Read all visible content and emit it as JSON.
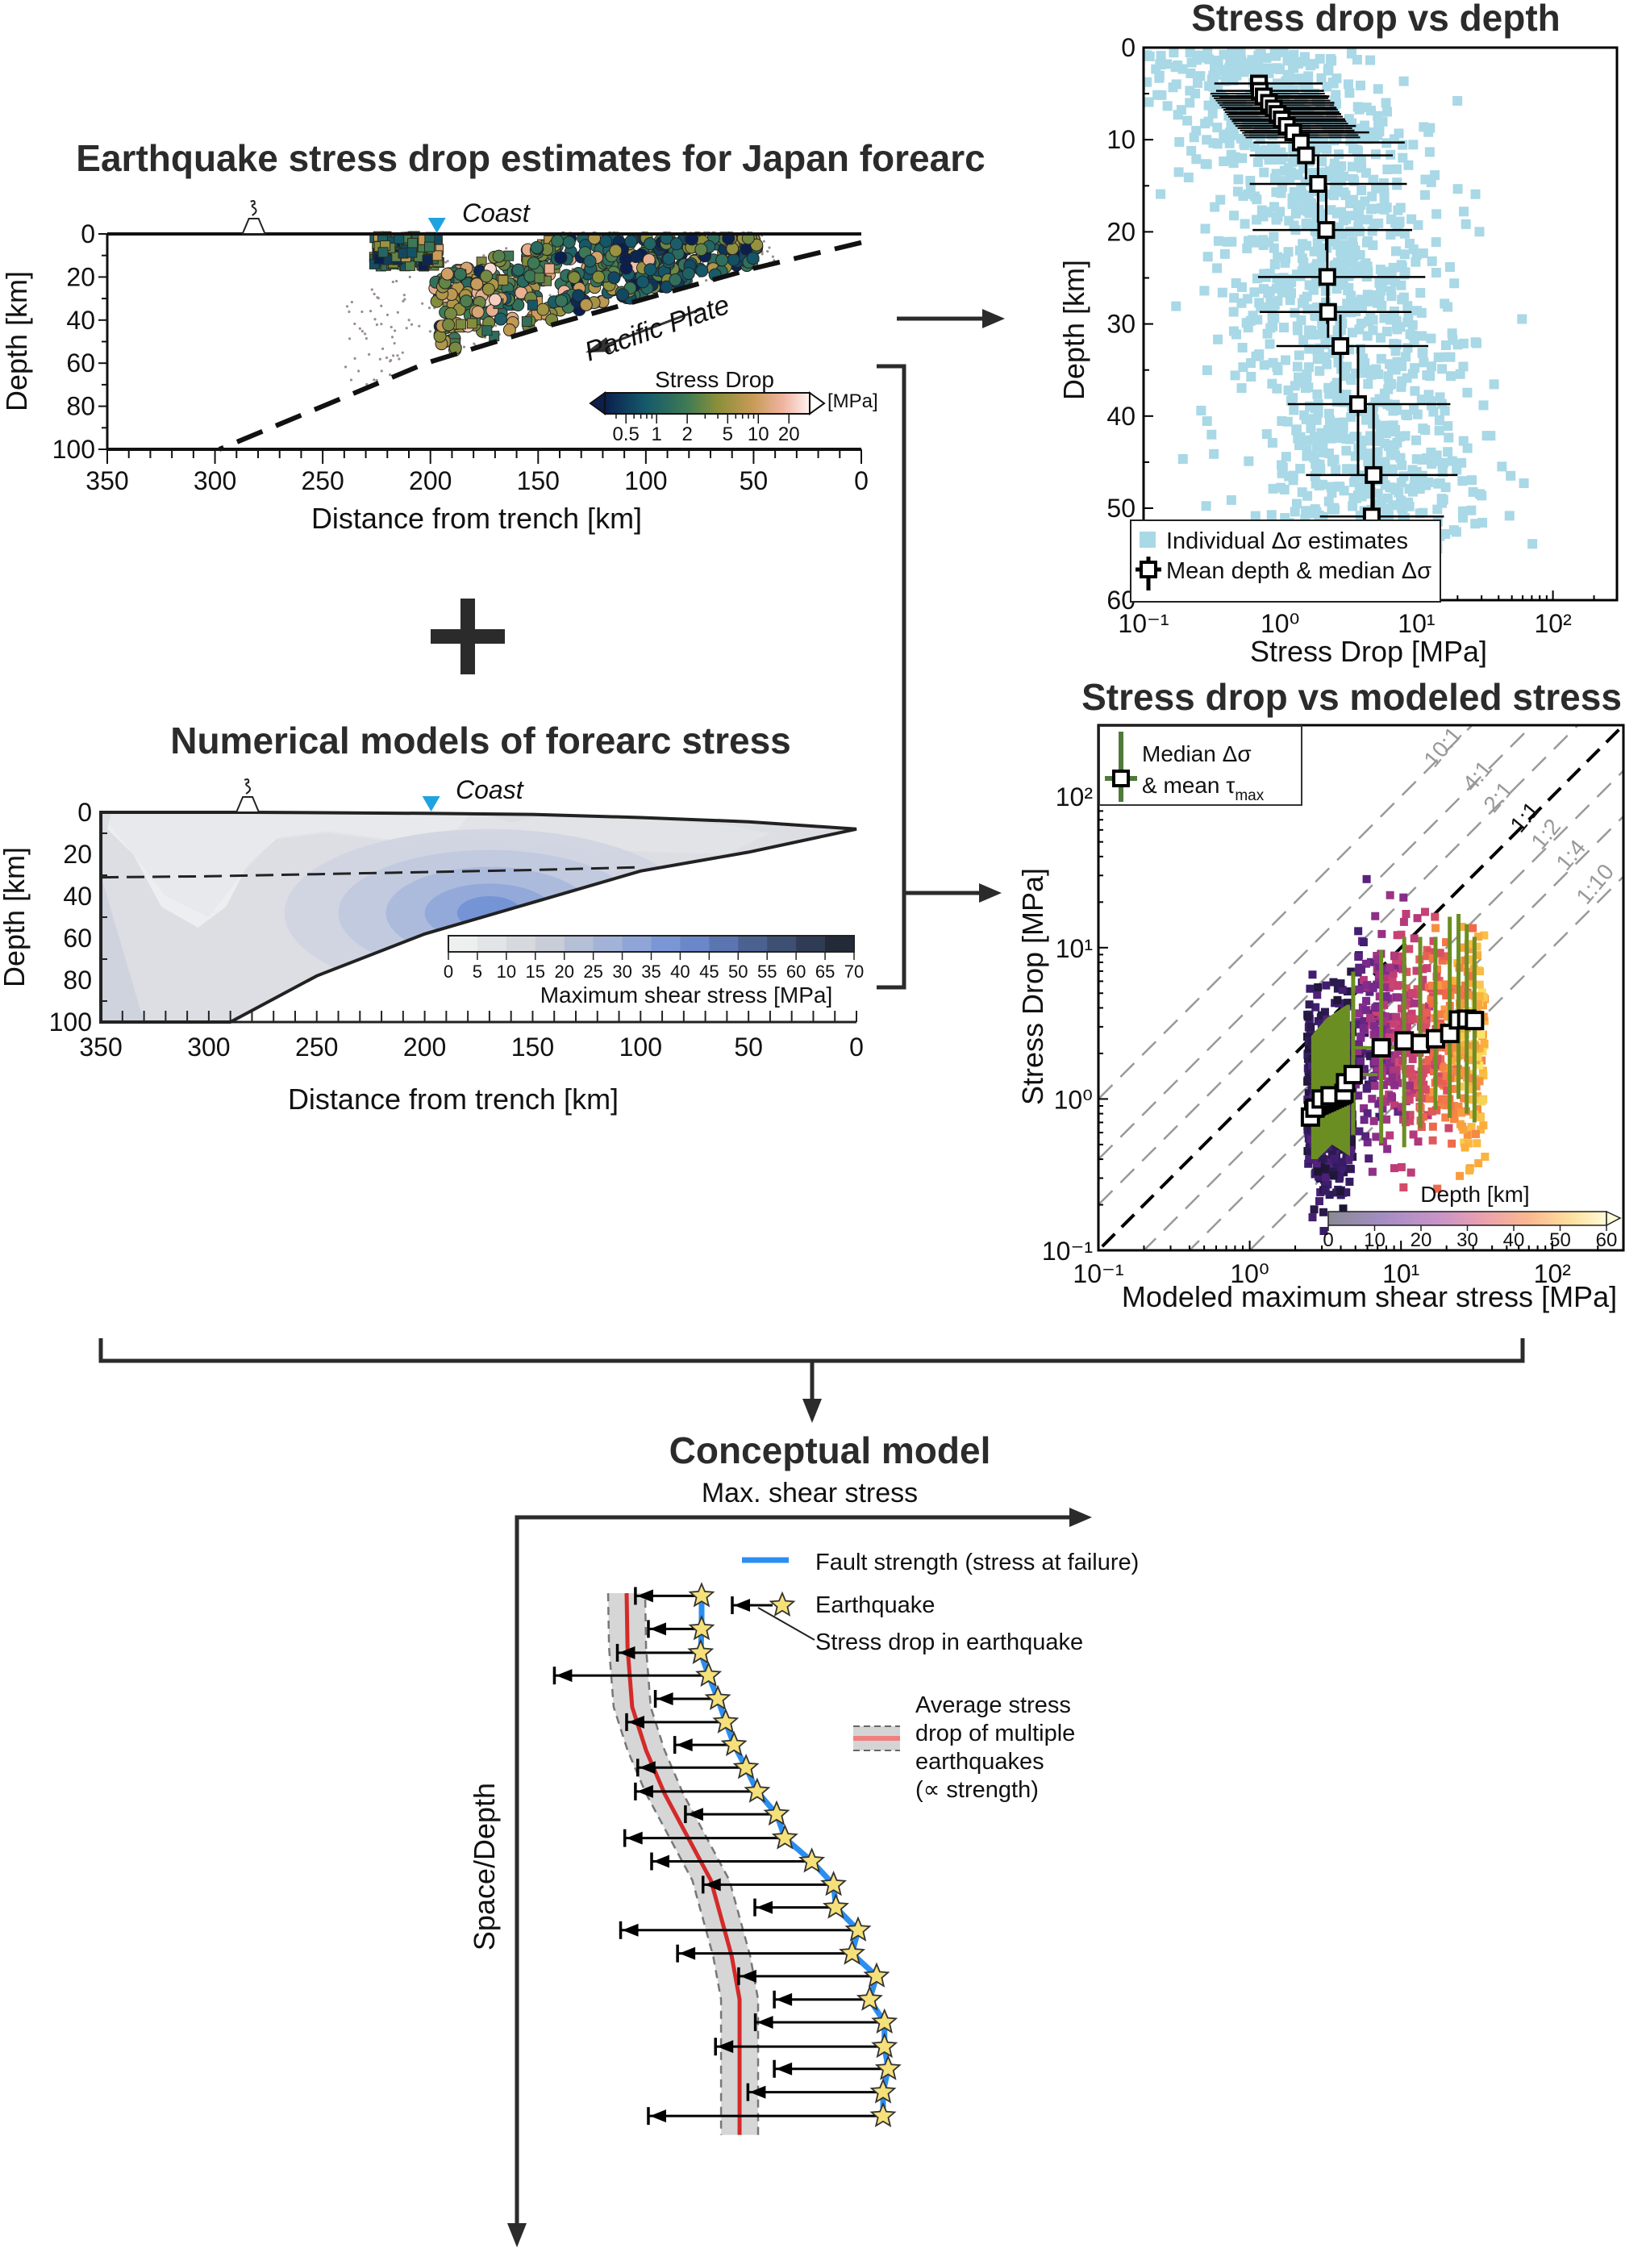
{
  "colors": {
    "ink": "#2b2b2b",
    "coast_marker": "#1fa3e0",
    "light_blue_points": "#a9d8e6",
    "median_green": "#6b8e23",
    "fault_strength_blue": "#2b8ef0",
    "average_red": "#d42a2a",
    "star_yellow": "#f5e07a"
  },
  "section_panel": {
    "title": "Earthquake stress drop estimates for Japan forearc",
    "coast_label": "Coast",
    "plate_label": "Pacific Plate",
    "ylabel": "Depth [km]",
    "xlabel": "Distance from trench [km]",
    "yticks": [
      "0",
      "20",
      "40",
      "60",
      "80",
      "100"
    ],
    "xticks": [
      "350",
      "300",
      "250",
      "200",
      "150",
      "100",
      "50",
      "0"
    ],
    "colorbar": {
      "label": "Stress Drop",
      "unit": "[MPa]",
      "ticks": [
        "0.5",
        "1",
        "2",
        "5",
        "10",
        "20"
      ]
    }
  },
  "model_panel": {
    "title": "Numerical models of forearc stress",
    "coast_label": "Coast",
    "ylabel": "Depth [km]",
    "xlabel": "Distance from trench [km]",
    "yticks": [
      "0",
      "20",
      "40",
      "60",
      "80",
      "100"
    ],
    "xticks": [
      "350",
      "300",
      "250",
      "200",
      "150",
      "100",
      "50",
      "0"
    ],
    "colorbar": {
      "label": "Maximum shear stress [MPa]",
      "ticks": [
        "0",
        "5",
        "10",
        "15",
        "20",
        "25",
        "30",
        "35",
        "40",
        "45",
        "50",
        "55",
        "60",
        "65",
        "70"
      ]
    }
  },
  "depth_panel": {
    "title": "Stress drop vs depth",
    "xlabel": "Stress Drop [MPa]",
    "ylabel": "Depth [km]",
    "xticks": [
      "10⁻¹",
      "10⁰",
      "10¹",
      "10²"
    ],
    "yticks": [
      "0",
      "10",
      "20",
      "30",
      "40",
      "50",
      "60"
    ],
    "legend": [
      "Individual Δσ estimates",
      "Mean depth & median Δσ"
    ]
  },
  "modeled_panel": {
    "title": "Stress drop vs modeled stress",
    "xlabel": "Modeled maximum shear stress [MPa]",
    "ylabel": "Stress Drop [MPa]",
    "xticks": [
      "10⁻¹",
      "10⁰",
      "10¹",
      "10²"
    ],
    "yticks": [
      "10⁻¹",
      "10⁰",
      "10¹",
      "10²"
    ],
    "legend": {
      "line1": "Median Δσ",
      "line2_prefix": "& mean τ",
      "line2_sub": "max"
    },
    "ratio_labels": [
      "10:1",
      "4:1",
      "2:1",
      "1:1",
      "1:2",
      "1:4",
      "1:10"
    ],
    "colorbar": {
      "label": "Depth [km]",
      "ticks": [
        "0",
        "10",
        "20",
        "30",
        "40",
        "50",
        "60"
      ]
    }
  },
  "conceptual": {
    "title": "Conceptual model",
    "x_axis_label": "Max. shear stress",
    "y_axis_label": "Space/Depth",
    "legend": {
      "fault_strength": "Fault strength (stress at failure)",
      "earthquake": "Earthquake",
      "stress_drop": "Stress drop in earthquake",
      "average": [
        "Average stress",
        "drop of multiple",
        "earthquakes",
        "(∝ strength)"
      ]
    }
  },
  "chart_data": [
    {
      "type": "scatter",
      "title": "Stress drop vs depth",
      "xlabel": "Stress Drop [MPa]",
      "ylabel": "Depth [km]",
      "xscale": "log",
      "xlim": [
        0.1,
        300
      ],
      "ylim": [
        60,
        0
      ],
      "legend_position": "bottom-left",
      "series": [
        {
          "name": "Mean depth & median Δσ",
          "points": [
            {
              "depth": 3.9,
              "median": 0.7,
              "lo": 0.33,
              "hi": 2.05
            },
            {
              "depth": 4.7,
              "median": 0.71,
              "lo": 0.34,
              "hi": 2.1
            },
            {
              "depth": 5.3,
              "median": 0.76,
              "lo": 0.36,
              "hi": 2.3
            },
            {
              "depth": 6.0,
              "median": 0.83,
              "lo": 0.38,
              "hi": 2.5
            },
            {
              "depth": 6.6,
              "median": 0.9,
              "lo": 0.4,
              "hi": 2.6
            },
            {
              "depth": 7.2,
              "median": 0.96,
              "lo": 0.42,
              "hi": 2.8
            },
            {
              "depth": 7.8,
              "median": 1.03,
              "lo": 0.45,
              "hi": 3.0
            },
            {
              "depth": 8.5,
              "median": 1.12,
              "lo": 0.5,
              "hi": 3.6
            },
            {
              "depth": 9.2,
              "median": 1.25,
              "lo": 0.55,
              "hi": 4.5
            },
            {
              "depth": 10.3,
              "median": 1.42,
              "lo": 0.64,
              "hi": 8.2
            },
            {
              "depth": 11.7,
              "median": 1.55,
              "lo": 0.6,
              "hi": 6.7
            },
            {
              "depth": 14.8,
              "median": 1.9,
              "lo": 0.6,
              "hi": 8.5
            },
            {
              "depth": 19.8,
              "median": 2.18,
              "lo": 0.63,
              "hi": 9.3
            },
            {
              "depth": 24.9,
              "median": 2.22,
              "lo": 0.69,
              "hi": 11.6
            },
            {
              "depth": 28.7,
              "median": 2.25,
              "lo": 0.71,
              "hi": 9.2
            },
            {
              "depth": 32.4,
              "median": 2.77,
              "lo": 0.94,
              "hi": 12.2
            },
            {
              "depth": 38.7,
              "median": 3.73,
              "lo": 1.14,
              "hi": 17.7
            },
            {
              "depth": 46.4,
              "median": 4.85,
              "lo": 1.55,
              "hi": 20
            },
            {
              "depth": 50.9,
              "median": 4.7,
              "lo": 1.96,
              "hi": 15.9
            }
          ]
        }
      ]
    },
    {
      "type": "scatter",
      "title": "Stress drop vs modeled stress",
      "xlabel": "Modeled maximum shear stress [MPa]",
      "ylabel": "Stress Drop [MPa]",
      "xscale": "log",
      "yscale": "log",
      "xlim": [
        0.1,
        300
      ],
      "ylim": [
        0.1,
        300
      ],
      "reference_ratios": [
        10,
        4,
        2,
        1,
        0.5,
        0.25,
        0.1
      ],
      "legend_position": "top-left",
      "series": [
        {
          "name": "Median Δσ & mean τmax",
          "points": [
            {
              "tau": 2.52,
              "median": 0.76,
              "lo": 0.4,
              "hi": 2.6
            },
            {
              "tau": 2.7,
              "median": 0.87,
              "lo": 0.4,
              "hi": 2.9
            },
            {
              "tau": 2.97,
              "median": 1.0,
              "lo": 0.4,
              "hi": 3.2
            },
            {
              "tau": 3.4,
              "median": 1.05,
              "lo": 0.42,
              "hi": 3.6
            },
            {
              "tau": 4.2,
              "median": 1.09,
              "lo": 0.42,
              "hi": 4.2
            },
            {
              "tau": 4.3,
              "median": 1.28,
              "lo": 0.45,
              "hi": 4.2
            },
            {
              "tau": 4.83,
              "median": 1.45,
              "lo": 0.58,
              "hi": 6.95
            },
            {
              "tau": 7.4,
              "median": 2.18,
              "lo": 0.51,
              "hi": 9.6
            },
            {
              "tau": 10.5,
              "median": 2.42,
              "lo": 0.48,
              "hi": 11.8
            },
            {
              "tau": 13.4,
              "median": 2.32,
              "lo": 0.64,
              "hi": 11.8
            },
            {
              "tau": 16.9,
              "median": 2.5,
              "lo": 0.85,
              "hi": 11.8
            },
            {
              "tau": 21,
              "median": 2.71,
              "lo": 0.75,
              "hi": 16
            },
            {
              "tau": 24,
              "median": 3.33,
              "lo": 1.0,
              "hi": 16.7
            },
            {
              "tau": 27.2,
              "median": 3.37,
              "lo": 0.8,
              "hi": 14.3
            },
            {
              "tau": 30.6,
              "median": 3.3,
              "lo": 0.7,
              "hi": 11.8
            }
          ]
        }
      ]
    }
  ]
}
